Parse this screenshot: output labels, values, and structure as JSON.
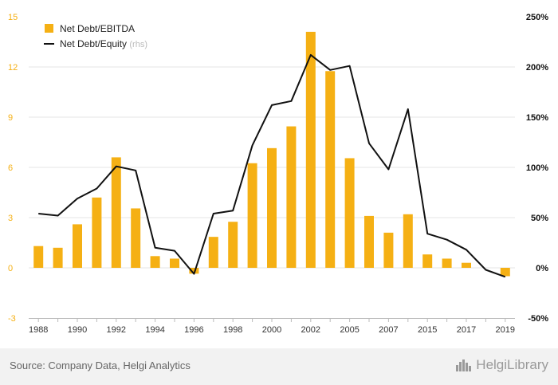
{
  "chart_data": {
    "type": "bar",
    "categories": [
      "1988",
      "1989",
      "1990",
      "1991",
      "1992",
      "1993",
      "1994",
      "1995",
      "1996",
      "1997",
      "1998",
      "1999",
      "2000",
      "2001",
      "2002",
      "2003",
      "2005",
      "2006",
      "2007",
      "2008",
      "2015",
      "2016",
      "2017",
      "2018",
      "2019"
    ],
    "x_tick_labels": [
      "1988",
      "",
      "1990",
      "",
      "1992",
      "",
      "1994",
      "",
      "1996",
      "",
      "1998",
      "",
      "2000",
      "",
      "2002",
      "",
      "2005",
      "",
      "2007",
      "",
      "2015",
      "",
      "2017",
      "",
      "2019"
    ],
    "series": [
      {
        "name": "Net Debt/EBITDA",
        "type": "bar",
        "axis": "left",
        "color": "#f5b014",
        "values": [
          1.3,
          1.2,
          2.6,
          4.2,
          6.6,
          3.55,
          0.7,
          0.55,
          -0.35,
          1.85,
          2.75,
          6.25,
          7.15,
          8.45,
          14.1,
          11.75,
          6.55,
          3.1,
          2.1,
          3.2,
          0.8,
          0.55,
          0.3,
          0.0,
          -0.5
        ]
      },
      {
        "name": "Net Debt/Equity",
        "name_suffix": "(rhs)",
        "type": "line",
        "axis": "right",
        "color": "#111111",
        "values": [
          54,
          52,
          69,
          79,
          101,
          97,
          20,
          17,
          -6,
          54,
          57,
          122,
          162,
          166,
          212,
          197,
          201,
          124,
          98,
          158,
          34,
          28,
          18,
          -2,
          -9
        ]
      }
    ],
    "y_left": {
      "min": -3,
      "max": 15,
      "ticks": [
        "-3",
        "0",
        "3",
        "6",
        "9",
        "12",
        "15"
      ]
    },
    "y_right": {
      "min": -50,
      "max": 250,
      "ticks": [
        "-50%",
        "0%",
        "50%",
        "100%",
        "150%",
        "200%",
        "250%"
      ]
    },
    "grid": true,
    "legend": "top-left",
    "colors": {
      "axis_left_text": "#f5b014",
      "axis_right_text": "#111111",
      "grid": "#e6e6e6"
    }
  },
  "footer": {
    "source": "Source: Company Data, Helgi Analytics",
    "logo": "HelgiLibrary"
  }
}
